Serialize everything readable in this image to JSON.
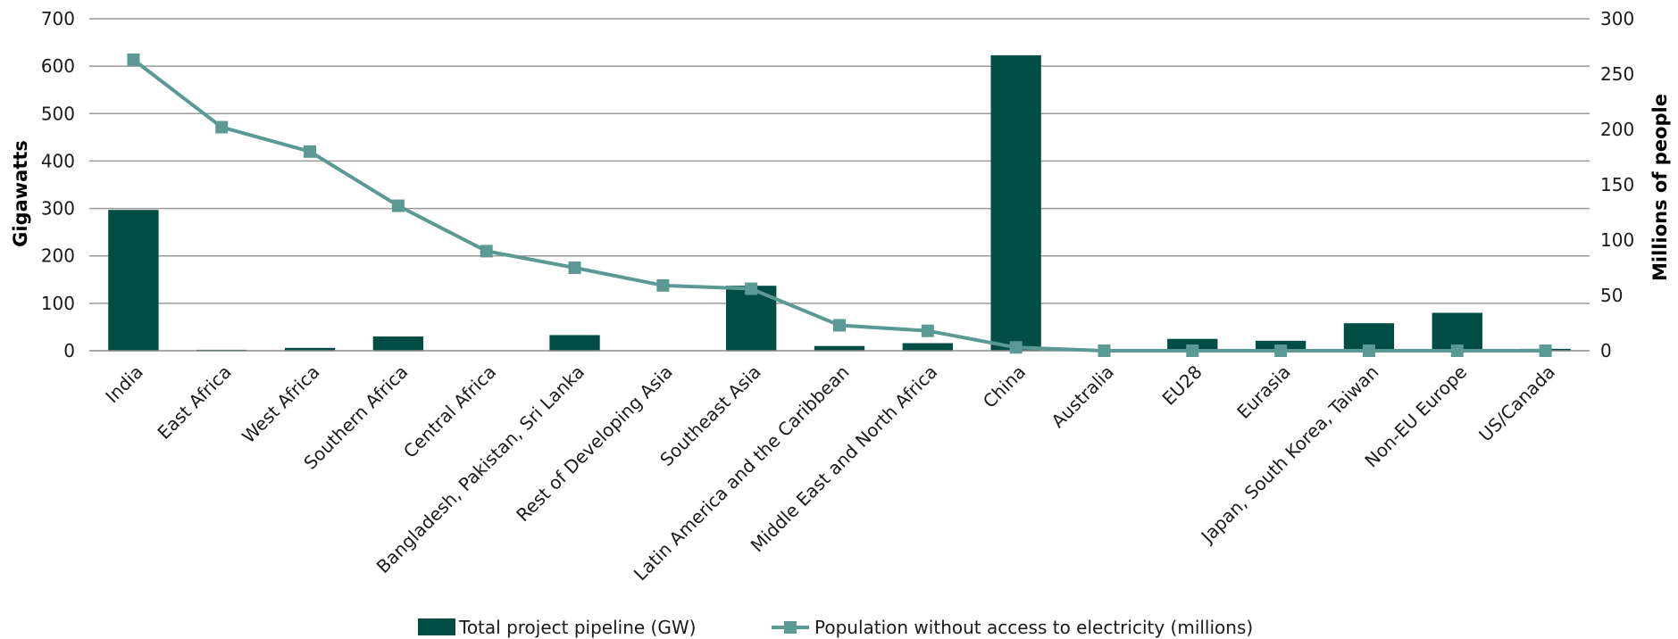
{
  "chart_data": {
    "type": "bar",
    "categories": [
      "India",
      "East Africa",
      "West Africa",
      "Southern Africa",
      "Central Africa",
      "Bangladesh, Pakistan, Sri Lanka",
      "Rest of Developing Asia",
      "Southeast Asia",
      "Latin America and the Caribbean",
      "Middle East and North Africa",
      "China",
      "Australia",
      "EU28",
      "Eurasia",
      "Japan, South Korea, Taiwan",
      "Non-EU Europe",
      "US/Canada"
    ],
    "series": [
      {
        "name": "Total project pipeline (GW)",
        "type": "bar",
        "axis": "left",
        "color": "#004d44",
        "values": [
          297,
          2,
          6,
          30,
          0,
          33,
          0,
          137,
          10,
          16,
          623,
          0,
          25,
          21,
          58,
          80,
          4
        ]
      },
      {
        "name": "Population without access to electricity (millions)",
        "type": "line",
        "axis": "right",
        "color": "#5a9994",
        "values": [
          263,
          202,
          180,
          131,
          90,
          75,
          59,
          56,
          23,
          18,
          3,
          0,
          0,
          0,
          0,
          0,
          0
        ]
      }
    ],
    "y_left": {
      "label": "Gigawatts",
      "range": [
        0,
        700
      ],
      "ticks": [
        0,
        100,
        200,
        300,
        400,
        500,
        600,
        700
      ]
    },
    "y_right": {
      "label": "Millions of people",
      "range": [
        0,
        300
      ],
      "ticks": [
        0,
        50,
        100,
        150,
        200,
        250,
        300
      ]
    },
    "grid": true,
    "legend": "bottom"
  }
}
